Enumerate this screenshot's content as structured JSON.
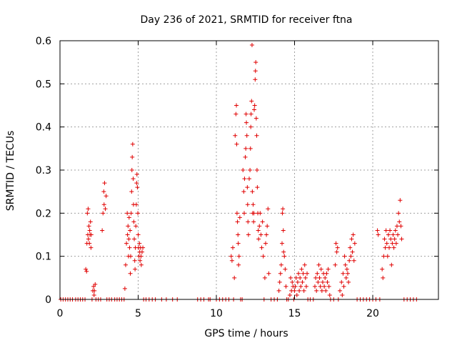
{
  "chart_data": {
    "type": "scatter",
    "title": "Day 236 of 2021, SRMTID for receiver ftna",
    "xlabel": "GPS time / hours",
    "ylabel": "SRMTID / TECUs",
    "xlim": [
      0,
      24.2
    ],
    "ylim": [
      0,
      0.6
    ],
    "xticks": [
      0,
      5,
      10,
      15,
      20
    ],
    "xtick_labels": [
      "0",
      "5",
      "10",
      "15",
      "20"
    ],
    "yticks": [
      0,
      0.1,
      0.2,
      0.3,
      0.4,
      0.5,
      0.6
    ],
    "ytick_labels": [
      "0",
      "0.1",
      "0.2",
      "0.3",
      "0.4",
      "0.5",
      "0.6"
    ],
    "grid": true,
    "marker": "+",
    "color": "#e00000",
    "series": [
      {
        "name": "SRMTID",
        "points": [
          [
            0.05,
            0
          ],
          [
            0.2,
            0
          ],
          [
            0.35,
            0
          ],
          [
            0.5,
            0
          ],
          [
            0.65,
            0
          ],
          [
            0.8,
            0
          ],
          [
            1.0,
            0
          ],
          [
            1.15,
            0
          ],
          [
            1.3,
            0
          ],
          [
            1.45,
            0
          ],
          [
            1.6,
            0
          ],
          [
            1.65,
            0.07
          ],
          [
            1.7,
            0.065
          ],
          [
            1.72,
            0.13
          ],
          [
            1.75,
            0.2
          ],
          [
            1.78,
            0.15
          ],
          [
            1.8,
            0.21
          ],
          [
            1.82,
            0.14
          ],
          [
            1.85,
            0.17
          ],
          [
            1.88,
            0.13
          ],
          [
            1.9,
            0.16
          ],
          [
            1.92,
            0.15
          ],
          [
            1.95,
            0.18
          ],
          [
            1.98,
            0.12
          ],
          [
            2.0,
            0.15
          ],
          [
            2.05,
            0.0
          ],
          [
            2.1,
            0.02
          ],
          [
            2.15,
            0.03
          ],
          [
            2.18,
            0.01
          ],
          [
            2.2,
            0.02
          ],
          [
            2.25,
            0.035
          ],
          [
            2.3,
            0
          ],
          [
            2.45,
            0
          ],
          [
            2.6,
            0
          ],
          [
            2.7,
            0.16
          ],
          [
            2.75,
            0.2
          ],
          [
            2.8,
            0.25
          ],
          [
            2.82,
            0.22
          ],
          [
            2.85,
            0.27
          ],
          [
            2.9,
            0.21
          ],
          [
            2.95,
            0.24
          ],
          [
            3.0,
            0
          ],
          [
            3.15,
            0
          ],
          [
            3.3,
            0
          ],
          [
            3.5,
            0
          ],
          [
            3.65,
            0
          ],
          [
            3.8,
            0
          ],
          [
            3.95,
            0
          ],
          [
            4.1,
            0
          ],
          [
            4.15,
            0.025
          ],
          [
            4.2,
            0.08
          ],
          [
            4.25,
            0.13
          ],
          [
            4.3,
            0.2
          ],
          [
            4.32,
            0.15
          ],
          [
            4.35,
            0.17
          ],
          [
            4.38,
            0.1
          ],
          [
            4.4,
            0.14
          ],
          [
            4.42,
            0.19
          ],
          [
            4.45,
            0.12
          ],
          [
            4.48,
            0.16
          ],
          [
            4.5,
            0.06
          ],
          [
            4.52,
            0.1
          ],
          [
            4.55,
            0.2
          ],
          [
            4.58,
            0.25
          ],
          [
            4.6,
            0.3
          ],
          [
            4.62,
            0.33
          ],
          [
            4.65,
            0.36
          ],
          [
            4.68,
            0.28
          ],
          [
            4.7,
            0.22
          ],
          [
            4.72,
            0.18
          ],
          [
            4.75,
            0.14
          ],
          [
            4.78,
            0.09
          ],
          [
            4.8,
            0.07
          ],
          [
            4.82,
            0.12
          ],
          [
            4.85,
            0.17
          ],
          [
            4.88,
            0.22
          ],
          [
            4.9,
            0.27
          ],
          [
            4.92,
            0.29
          ],
          [
            4.95,
            0.26
          ],
          [
            4.98,
            0.2
          ],
          [
            5.0,
            0.15
          ],
          [
            5.02,
            0.12
          ],
          [
            5.05,
            0.1
          ],
          [
            5.08,
            0.13
          ],
          [
            5.1,
            0.11
          ],
          [
            5.12,
            0.09
          ],
          [
            5.15,
            0.12
          ],
          [
            5.18,
            0.1
          ],
          [
            5.2,
            0.08
          ],
          [
            5.25,
            0.11
          ],
          [
            5.3,
            0.12
          ],
          [
            5.35,
            0
          ],
          [
            5.5,
            0
          ],
          [
            5.7,
            0
          ],
          [
            5.9,
            0
          ],
          [
            6.1,
            0
          ],
          [
            6.5,
            0
          ],
          [
            6.8,
            0
          ],
          [
            7.2,
            0
          ],
          [
            7.5,
            0
          ],
          [
            8.8,
            0
          ],
          [
            9.0,
            0
          ],
          [
            9.2,
            0
          ],
          [
            9.5,
            0
          ],
          [
            9.6,
            0
          ],
          [
            10.0,
            0
          ],
          [
            10.2,
            0
          ],
          [
            10.4,
            0
          ],
          [
            10.6,
            0
          ],
          [
            10.8,
            0
          ],
          [
            10.95,
            0.1
          ],
          [
            11.0,
            0.09
          ],
          [
            11.05,
            0.12
          ],
          [
            11.1,
            0
          ],
          [
            11.15,
            0.05
          ],
          [
            11.2,
            0.38
          ],
          [
            11.25,
            0.43
          ],
          [
            11.28,
            0.45
          ],
          [
            11.3,
            0.36
          ],
          [
            11.32,
            0.2
          ],
          [
            11.35,
            0.18
          ],
          [
            11.38,
            0.15
          ],
          [
            11.4,
            0.13
          ],
          [
            11.42,
            0.08
          ],
          [
            11.45,
            0.1
          ],
          [
            11.5,
            0.19
          ],
          [
            11.55,
            0
          ],
          [
            11.65,
            0
          ],
          [
            11.7,
            0.3
          ],
          [
            11.75,
            0.25
          ],
          [
            11.78,
            0.2
          ],
          [
            11.8,
            0.28
          ],
          [
            11.85,
            0.33
          ],
          [
            11.88,
            0.35
          ],
          [
            11.9,
            0.43
          ],
          [
            11.92,
            0.41
          ],
          [
            11.95,
            0.38
          ],
          [
            11.98,
            0.26
          ],
          [
            12.0,
            0.22
          ],
          [
            12.02,
            0.18
          ],
          [
            12.05,
            0.15
          ],
          [
            12.1,
            0.28
          ],
          [
            12.15,
            0.3
          ],
          [
            12.18,
            0.35
          ],
          [
            12.2,
            0.4
          ],
          [
            12.22,
            0.43
          ],
          [
            12.25,
            0.46
          ],
          [
            12.28,
            0.59
          ],
          [
            12.3,
            0.25
          ],
          [
            12.32,
            0.2
          ],
          [
            12.35,
            0.22
          ],
          [
            12.38,
            0.18
          ],
          [
            12.4,
            0.2
          ],
          [
            12.42,
            0.44
          ],
          [
            12.45,
            0.45
          ],
          [
            12.48,
            0.51
          ],
          [
            12.5,
            0.53
          ],
          [
            12.52,
            0.55
          ],
          [
            12.55,
            0.42
          ],
          [
            12.58,
            0.38
          ],
          [
            12.6,
            0.3
          ],
          [
            12.62,
            0.26
          ],
          [
            12.65,
            0.2
          ],
          [
            12.68,
            0.16
          ],
          [
            12.7,
            0.14
          ],
          [
            12.75,
            0.17
          ],
          [
            12.8,
            0.2
          ],
          [
            12.85,
            0.15
          ],
          [
            12.9,
            0.12
          ],
          [
            12.95,
            0.18
          ],
          [
            13.0,
            0.1
          ],
          [
            13.05,
            0.0
          ],
          [
            13.1,
            0.05
          ],
          [
            13.15,
            0.13
          ],
          [
            13.2,
            0.15
          ],
          [
            13.25,
            0.17
          ],
          [
            13.3,
            0.21
          ],
          [
            13.35,
            0.06
          ],
          [
            13.5,
            0
          ],
          [
            13.7,
            0
          ],
          [
            13.9,
            0
          ],
          [
            14.0,
            0.02
          ],
          [
            14.05,
            0.04
          ],
          [
            14.1,
            0.06
          ],
          [
            14.15,
            0.08
          ],
          [
            14.2,
            0.13
          ],
          [
            14.22,
            0.2
          ],
          [
            14.25,
            0.21
          ],
          [
            14.28,
            0.16
          ],
          [
            14.3,
            0.11
          ],
          [
            14.35,
            0.1
          ],
          [
            14.4,
            0.07
          ],
          [
            14.45,
            0.03
          ],
          [
            14.5,
            0.0
          ],
          [
            14.6,
            0
          ],
          [
            14.7,
            0.01
          ],
          [
            14.75,
            0.05
          ],
          [
            14.8,
            0.02
          ],
          [
            14.85,
            0.04
          ],
          [
            14.9,
            0.03
          ],
          [
            14.95,
            0.0
          ],
          [
            15.0,
            0.02
          ],
          [
            15.05,
            0.03
          ],
          [
            15.1,
            0.05
          ],
          [
            15.15,
            0.01
          ],
          [
            15.2,
            0.04
          ],
          [
            15.25,
            0.06
          ],
          [
            15.3,
            0.02
          ],
          [
            15.35,
            0.05
          ],
          [
            15.4,
            0.03
          ],
          [
            15.45,
            0.07
          ],
          [
            15.5,
            0.04
          ],
          [
            15.55,
            0.06
          ],
          [
            15.6,
            0.02
          ],
          [
            15.65,
            0.08
          ],
          [
            15.7,
            0.05
          ],
          [
            15.75,
            0.03
          ],
          [
            15.8,
            0.06
          ],
          [
            15.85,
            0.0
          ],
          [
            16.0,
            0
          ],
          [
            16.2,
            0
          ],
          [
            16.3,
            0.03
          ],
          [
            16.35,
            0.05
          ],
          [
            16.4,
            0.02
          ],
          [
            16.45,
            0.06
          ],
          [
            16.5,
            0.04
          ],
          [
            16.55,
            0.08
          ],
          [
            16.6,
            0.05
          ],
          [
            16.65,
            0.03
          ],
          [
            16.7,
            0.07
          ],
          [
            16.75,
            0.02
          ],
          [
            16.8,
            0.04
          ],
          [
            16.85,
            0.06
          ],
          [
            16.9,
            0.03
          ],
          [
            16.95,
            0.05
          ],
          [
            17.0,
            0.02
          ],
          [
            17.05,
            0.06
          ],
          [
            17.1,
            0.04
          ],
          [
            17.15,
            0.07
          ],
          [
            17.2,
            0.03
          ],
          [
            17.25,
            0.01
          ],
          [
            17.3,
            0
          ],
          [
            17.5,
            0
          ],
          [
            17.6,
            0.08
          ],
          [
            17.65,
            0.13
          ],
          [
            17.7,
            0.11
          ],
          [
            17.75,
            0.12
          ],
          [
            17.8,
            0.0
          ],
          [
            17.9,
            0.02
          ],
          [
            18.0,
            0.04
          ],
          [
            18.05,
            0.01
          ],
          [
            18.1,
            0.06
          ],
          [
            18.15,
            0.03
          ],
          [
            18.2,
            0.1
          ],
          [
            18.25,
            0.08
          ],
          [
            18.3,
            0.05
          ],
          [
            18.35,
            0.07
          ],
          [
            18.4,
            0.06
          ],
          [
            18.45,
            0.04
          ],
          [
            18.5,
            0.09
          ],
          [
            18.55,
            0.12
          ],
          [
            18.6,
            0.1
          ],
          [
            18.65,
            0.14
          ],
          [
            18.7,
            0.11
          ],
          [
            18.75,
            0.15
          ],
          [
            18.8,
            0.09
          ],
          [
            18.85,
            0.13
          ],
          [
            19.0,
            0
          ],
          [
            19.2,
            0
          ],
          [
            19.4,
            0
          ],
          [
            19.6,
            0
          ],
          [
            19.8,
            0
          ],
          [
            20.0,
            0
          ],
          [
            20.2,
            0
          ],
          [
            20.3,
            0.16
          ],
          [
            20.35,
            0.15
          ],
          [
            20.45,
            0
          ],
          [
            20.6,
            0.07
          ],
          [
            20.65,
            0.05
          ],
          [
            20.7,
            0.1
          ],
          [
            20.75,
            0.14
          ],
          [
            20.8,
            0.12
          ],
          [
            20.85,
            0.16
          ],
          [
            20.9,
            0.13
          ],
          [
            20.95,
            0.1
          ],
          [
            21.0,
            0.15
          ],
          [
            21.05,
            0.12
          ],
          [
            21.1,
            0.16
          ],
          [
            21.15,
            0.14
          ],
          [
            21.2,
            0.08
          ],
          [
            21.25,
            0.13
          ],
          [
            21.3,
            0.15
          ],
          [
            21.35,
            0.12
          ],
          [
            21.4,
            0.14
          ],
          [
            21.45,
            0.16
          ],
          [
            21.5,
            0.13
          ],
          [
            21.55,
            0.17
          ],
          [
            21.6,
            0.15
          ],
          [
            21.65,
            0.2
          ],
          [
            21.7,
            0.18
          ],
          [
            21.75,
            0.23
          ],
          [
            21.8,
            0.17
          ],
          [
            21.85,
            0.14
          ],
          [
            22.0,
            0
          ],
          [
            22.2,
            0
          ],
          [
            22.4,
            0
          ],
          [
            22.6,
            0
          ],
          [
            22.8,
            0
          ]
        ]
      }
    ]
  }
}
